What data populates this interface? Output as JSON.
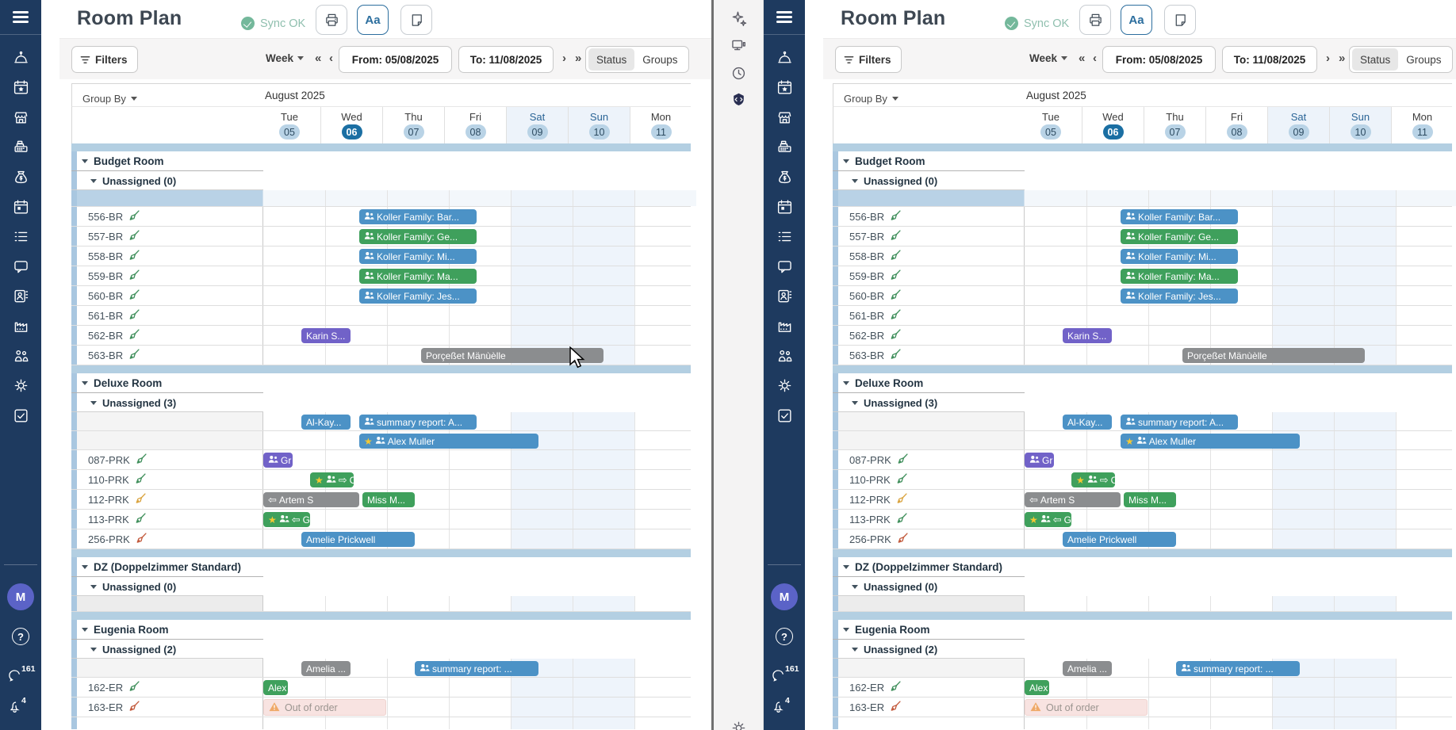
{
  "app": {
    "middle_toolbar": {
      "icons": [
        "sparkle",
        "device",
        "clock",
        "assistant-badge",
        "gear"
      ]
    },
    "sidebar": {
      "nav_icons": [
        "service-bell",
        "calendar-star",
        "storefront",
        "cash-register",
        "money-bag",
        "calendar-day",
        "list",
        "chat",
        "contact-card",
        "factory",
        "people",
        "gear",
        "task-check"
      ],
      "avatar_initial": "M",
      "help_label": "?",
      "chat_badge": "161",
      "bell_badge": "4"
    }
  },
  "plan": {
    "title": "Room Plan",
    "sync_status": "Sync OK",
    "toolbar": {
      "font_button": "Aa"
    },
    "filters": {
      "filters_label": "Filters",
      "range_label": "Week",
      "nav_far_prev": "«",
      "nav_prev": "‹",
      "from_value": "From: 05/08/2025",
      "to_value": "To: 11/08/2025",
      "nav_next": "›",
      "nav_far_next": "»",
      "toggle": [
        "Status",
        "Groups"
      ],
      "toggle_selected": "Status"
    },
    "group_by_label": "Group By",
    "calendar": {
      "month_label": "August 2025",
      "days": [
        {
          "name": "Tue",
          "date": "05"
        },
        {
          "name": "Wed",
          "date": "06"
        },
        {
          "name": "Thu",
          "date": "07"
        },
        {
          "name": "Fri",
          "date": "08"
        },
        {
          "name": "Sat",
          "date": "09"
        },
        {
          "name": "Sun",
          "date": "10"
        },
        {
          "name": "Mon",
          "date": "11"
        }
      ],
      "today_index": 1,
      "weekend_indices": [
        4,
        5
      ]
    },
    "groups": [
      {
        "name": "Budget Room",
        "unassigned_label": "Unassigned (0)",
        "unassigned_rows": [
          {
            "style": "empty-blue",
            "bars": []
          }
        ],
        "rooms": [
          {
            "label": "556-BR",
            "status": "clean",
            "bars": [
              {
                "text": "Koller Family: Bar...",
                "color": "blue",
                "icons": [
                  "people"
                ],
                "start": 1.55,
                "end": 3.45
              }
            ]
          },
          {
            "label": "557-BR",
            "status": "clean",
            "bars": [
              {
                "text": "Koller Family: Ge...",
                "color": "green",
                "icons": [
                  "people"
                ],
                "start": 1.55,
                "end": 3.45
              }
            ]
          },
          {
            "label": "558-BR",
            "status": "clean",
            "bars": [
              {
                "text": "Koller Family: Mi...",
                "color": "blue",
                "icons": [
                  "people"
                ],
                "start": 1.55,
                "end": 3.45
              }
            ]
          },
          {
            "label": "559-BR",
            "status": "clean",
            "bars": [
              {
                "text": "Koller Family: Ma...",
                "color": "green",
                "icons": [
                  "people"
                ],
                "start": 1.55,
                "end": 3.45
              }
            ]
          },
          {
            "label": "560-BR",
            "status": "clean",
            "bars": [
              {
                "text": "Koller Family: Jes...",
                "color": "blue",
                "icons": [
                  "people"
                ],
                "start": 1.55,
                "end": 3.45
              }
            ]
          },
          {
            "label": "561-BR",
            "status": "clean",
            "bars": []
          },
          {
            "label": "562-BR",
            "status": "clean",
            "bars": [
              {
                "text": "Karin S...",
                "color": "purple",
                "icons": [],
                "start": 0.62,
                "end": 1.42
              }
            ]
          },
          {
            "label": "563-BR",
            "status": "clean",
            "bars": [
              {
                "text": "Porçeßet Mänùèlle",
                "color": "gray",
                "icons": [],
                "start": 2.55,
                "end": 5.5
              }
            ]
          }
        ]
      },
      {
        "name": "Deluxe Room",
        "unassigned_label": "Unassigned (3)",
        "unassigned_rows": [
          {
            "style": "slot",
            "bars": [
              {
                "text": "Al-Kay...",
                "color": "blue",
                "icons": [],
                "start": 0.62,
                "end": 1.42
              },
              {
                "text": "summary report: A...",
                "color": "blue",
                "icons": [
                  "people"
                ],
                "start": 1.55,
                "end": 3.45
              }
            ]
          },
          {
            "style": "slot",
            "bars": [
              {
                "text": "Alex Muller",
                "color": "blue",
                "icons": [
                  "star",
                  "people"
                ],
                "start": 1.55,
                "end": 4.45
              }
            ]
          }
        ],
        "rooms": [
          {
            "label": "087-PRK",
            "status": "clean",
            "bars": [
              {
                "text": "Gr",
                "color": "purple",
                "icons": [
                  "people"
                ],
                "start": 0,
                "end": 0.47
              }
            ]
          },
          {
            "label": "110-PRK",
            "status": "clean",
            "bars": [
              {
                "text": "C",
                "color": "green",
                "icons": [
                  "star",
                  "people",
                  "arrow-right"
                ],
                "start": 0.75,
                "end": 1.45
              }
            ]
          },
          {
            "label": "112-PRK",
            "status": "attention",
            "bars": [
              {
                "text": "Artem S",
                "color": "gray",
                "icons": [
                  "arrow-left"
                ],
                "start": 0,
                "end": 1.55
              },
              {
                "text": "Miss M...",
                "color": "green",
                "icons": [],
                "start": 1.6,
                "end": 2.45
              }
            ]
          },
          {
            "label": "113-PRK",
            "status": "clean",
            "bars": [
              {
                "text": "G",
                "color": "green",
                "icons": [
                  "star",
                  "people",
                  "arrow-left"
                ],
                "start": 0,
                "end": 0.76
              }
            ]
          },
          {
            "label": "256-PRK",
            "status": "dirty",
            "bars": [
              {
                "text": "Amelie Prickwell",
                "color": "blue",
                "icons": [],
                "start": 0.62,
                "end": 2.45
              }
            ]
          }
        ]
      },
      {
        "name": "DZ (Doppelzimmer Standard)",
        "unassigned_label": "Unassigned (0)",
        "unassigned_rows": [
          {
            "style": "empty-gray",
            "bars": []
          }
        ],
        "rooms": []
      },
      {
        "name": "Eugenia Room",
        "unassigned_label": "Unassigned (2)",
        "unassigned_rows": [
          {
            "style": "slot",
            "bars": [
              {
                "text": "Amelia ...",
                "color": "gray",
                "icons": [],
                "start": 0.62,
                "end": 1.42
              },
              {
                "text": "summary report: ...",
                "color": "blue",
                "icons": [
                  "people"
                ],
                "start": 2.45,
                "end": 4.45
              }
            ]
          }
        ],
        "rooms": [
          {
            "label": "162-ER",
            "status": "clean",
            "bars": [
              {
                "text": "Alex",
                "color": "green",
                "icons": [],
                "start": 0,
                "end": 0.4
              }
            ]
          },
          {
            "label": "163-ER",
            "status": "dirty",
            "bars": [
              {
                "text": "Out of order",
                "color": "ooo",
                "icons": [
                  "warning"
                ],
                "start": 0,
                "end": 1.99
              }
            ]
          }
        ]
      }
    ]
  },
  "colors": {
    "sidebar_navy": "#1e3a5f",
    "accent_today": "#1b6fa3",
    "date_pill": "#b9d3e6",
    "weekend_bg": "#edf3fa",
    "separator_band": "#b3cfe2",
    "sync_green": "#74b89b",
    "bars": {
      "blue": "#4c92c6",
      "green": "#3fa05c",
      "purple": "#7162c8",
      "gray": "#8b8d8f",
      "ooo_bg": "#f8e3e1",
      "ooo_text": "#9a948f",
      "ooo_border": "#efd3cf"
    },
    "room_status": {
      "clean": "#3e8e5a",
      "attention": "#d9a23c",
      "dirty": "#c2593b"
    }
  }
}
